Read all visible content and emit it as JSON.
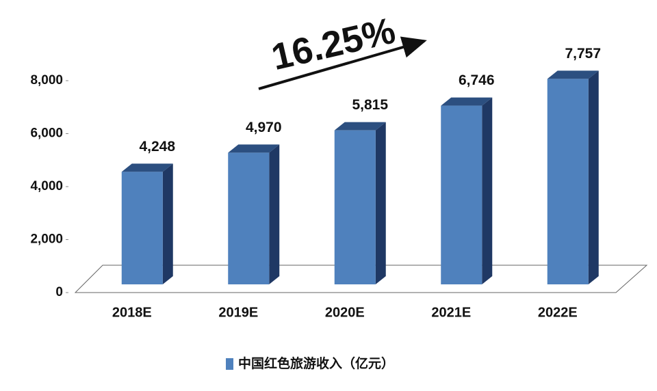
{
  "chart_data": {
    "type": "bar3d",
    "annotation": "16.25%",
    "categories": [
      "2018E",
      "2019E",
      "2020E",
      "2021E",
      "2022E"
    ],
    "series": [
      {
        "name": "中国红色旅游收入（亿元）",
        "color": "#4f81bd",
        "values": [
          4248,
          4970,
          5815,
          6746,
          7757
        ],
        "value_labels": [
          "4,248",
          "4,970",
          "5,815",
          "6,746",
          "7,757"
        ]
      }
    ],
    "ylim": [
      0,
      8000
    ],
    "yticks": [
      0,
      {
        "value": 2000,
        "label": "2,000"
      },
      {
        "value": 4000,
        "label": "4,000"
      },
      {
        "value": 6000,
        "label": "6,000"
      },
      {
        "value": 8000,
        "label": "8,000"
      }
    ]
  }
}
